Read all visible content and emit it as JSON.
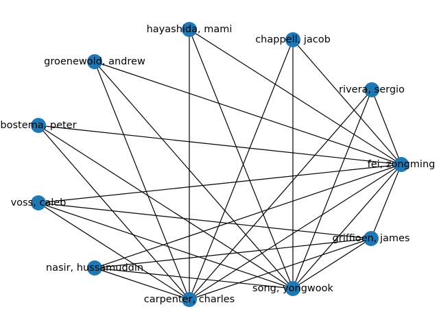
{
  "graph": {
    "node_color": "#1f77b4",
    "edge_color": "#000000",
    "nodes": [
      {
        "id": "hayashida",
        "label": "hayashida, mami"
      },
      {
        "id": "chappell",
        "label": "chappell, jacob"
      },
      {
        "id": "groenewold",
        "label": "groenewold, andrew"
      },
      {
        "id": "rivera",
        "label": "rivera, sergio"
      },
      {
        "id": "bostema",
        "label": "bostema, peter"
      },
      {
        "id": "fei",
        "label": "fei, zongming"
      },
      {
        "id": "voss",
        "label": "voss, caleb"
      },
      {
        "id": "griffioen",
        "label": "griffioen, james"
      },
      {
        "id": "nasir",
        "label": "nasir, hussamuddin"
      },
      {
        "id": "song",
        "label": "song, yongwook"
      },
      {
        "id": "carpenter",
        "label": "carpenter, charles"
      }
    ],
    "edges": [
      [
        "hayashida",
        "carpenter"
      ],
      [
        "hayashida",
        "song"
      ],
      [
        "hayashida",
        "fei"
      ],
      [
        "chappell",
        "carpenter"
      ],
      [
        "chappell",
        "song"
      ],
      [
        "chappell",
        "fei"
      ],
      [
        "groenewold",
        "carpenter"
      ],
      [
        "groenewold",
        "song"
      ],
      [
        "groenewold",
        "fei"
      ],
      [
        "rivera",
        "carpenter"
      ],
      [
        "rivera",
        "song"
      ],
      [
        "rivera",
        "fei"
      ],
      [
        "bostema",
        "fei"
      ],
      [
        "bostema",
        "carpenter"
      ],
      [
        "bostema",
        "song"
      ],
      [
        "fei",
        "voss"
      ],
      [
        "fei",
        "griffioen"
      ],
      [
        "fei",
        "nasir"
      ],
      [
        "fei",
        "song"
      ],
      [
        "fei",
        "carpenter"
      ],
      [
        "voss",
        "griffioen"
      ],
      [
        "voss",
        "carpenter"
      ],
      [
        "voss",
        "song"
      ],
      [
        "griffioen",
        "nasir"
      ],
      [
        "griffioen",
        "song"
      ],
      [
        "griffioen",
        "carpenter"
      ],
      [
        "nasir",
        "song"
      ],
      [
        "nasir",
        "carpenter"
      ]
    ]
  }
}
